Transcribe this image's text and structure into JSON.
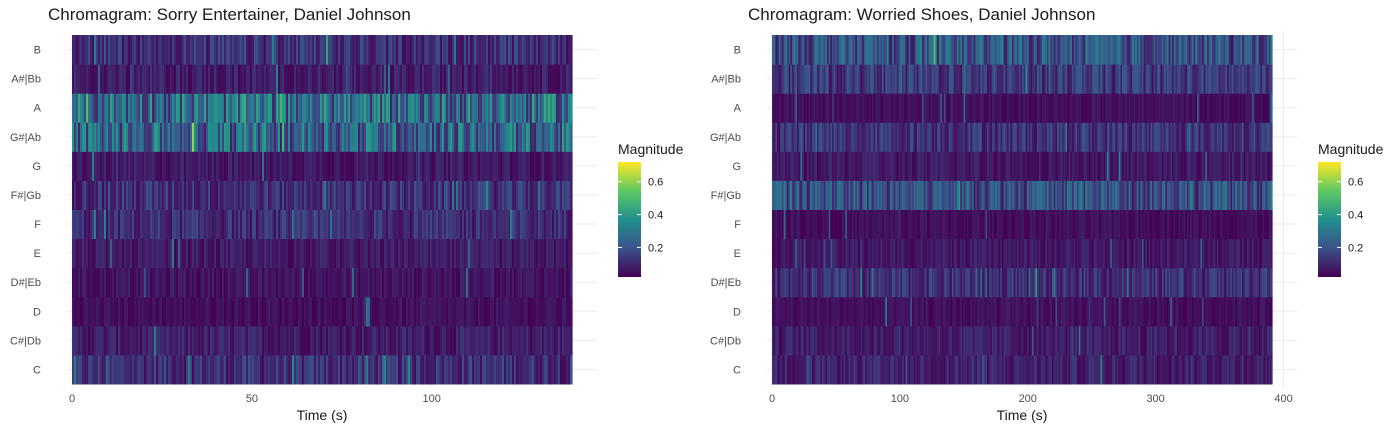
{
  "chart_data": [
    {
      "type": "heatmap",
      "title": "Chromagram: Sorry Entertainer, Daniel Johnson",
      "xlabel": "Time (s)",
      "ylabel": "",
      "x_ticks": [
        0,
        50,
        100
      ],
      "xlim": [
        0,
        139
      ],
      "y_categories": [
        "C",
        "C#|Db",
        "D",
        "D#|Eb",
        "E",
        "F",
        "F#|Gb",
        "G",
        "G#|Ab",
        "A",
        "A#|Bb",
        "B"
      ],
      "band_mean_magnitude": [
        0.12,
        0.08,
        0.05,
        0.06,
        0.07,
        0.11,
        0.12,
        0.07,
        0.25,
        0.27,
        0.08,
        0.12
      ],
      "colorbar": {
        "label": "Magnitude",
        "range": [
          0.02,
          0.72
        ],
        "ticks": [
          0.2,
          0.4,
          0.6
        ]
      },
      "grid": true
    },
    {
      "type": "heatmap",
      "title": "Chromagram: Worried Shoes, Daniel Johnson",
      "xlabel": "Time (s)",
      "ylabel": "",
      "x_ticks": [
        0,
        100,
        200,
        300,
        400
      ],
      "xlim": [
        0,
        391
      ],
      "y_categories": [
        "C",
        "C#|Db",
        "D",
        "D#|Eb",
        "E",
        "F",
        "F#|Gb",
        "G",
        "G#|Ab",
        "A",
        "A#|Bb",
        "B"
      ],
      "band_mean_magnitude": [
        0.09,
        0.08,
        0.05,
        0.12,
        0.07,
        0.05,
        0.2,
        0.07,
        0.13,
        0.05,
        0.14,
        0.2
      ],
      "colorbar": {
        "label": "Magnitude",
        "range": [
          0.02,
          0.72
        ],
        "ticks": [
          0.2,
          0.4,
          0.6
        ]
      },
      "grid": true
    }
  ]
}
